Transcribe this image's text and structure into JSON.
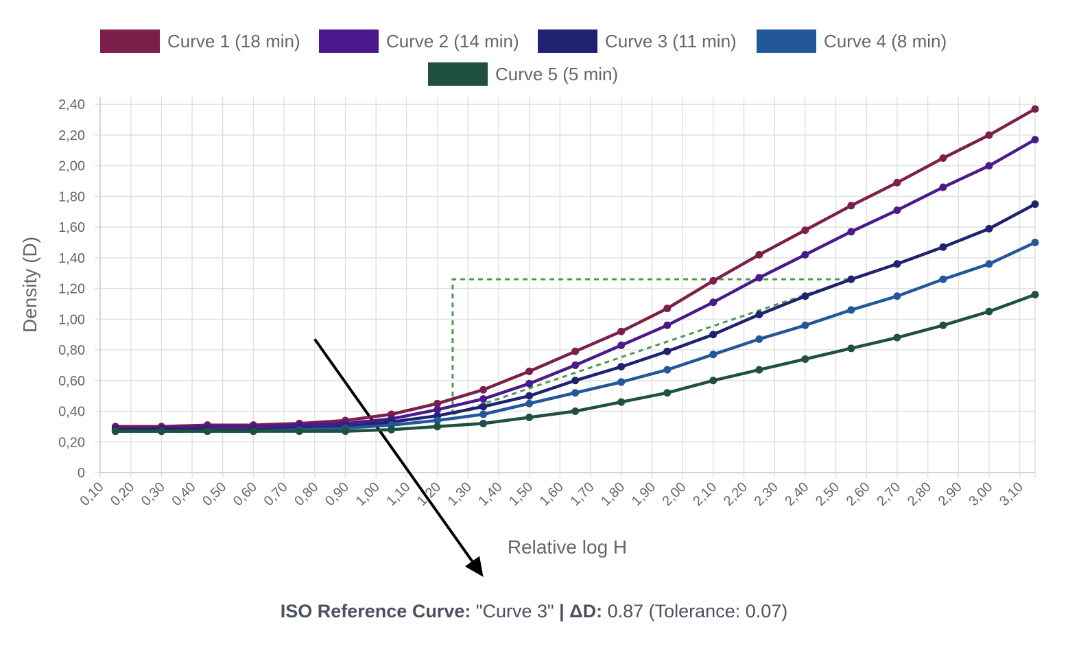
{
  "chart_data": {
    "type": "line",
    "xlabel": "Relative log H",
    "ylabel": "Density (D)",
    "x_ticks": [
      "0,10",
      "0,20",
      "0,30",
      "0,40",
      "0,50",
      "0,60",
      "0,70",
      "0,80",
      "0,90",
      "1,00",
      "1,10",
      "1,20",
      "1,30",
      "1,40",
      "1,50",
      "1,60",
      "1,70",
      "1,80",
      "1,90",
      "2,00",
      "2,10",
      "2,20",
      "2,30",
      "2,40",
      "2,50",
      "2,60",
      "2,70",
      "2,80",
      "2,90",
      "3,00",
      "3,10"
    ],
    "y_ticks": [
      "0",
      "0,20",
      "0,40",
      "0,60",
      "0,80",
      "1,00",
      "1,20",
      "1,40",
      "1,60",
      "1,80",
      "2,00",
      "2,20",
      "2,40"
    ],
    "xlim": [
      0.1,
      3.15
    ],
    "ylim": [
      0,
      2.45
    ],
    "grid": true,
    "legend_position": "top",
    "x": [
      0.15,
      0.3,
      0.45,
      0.6,
      0.75,
      0.9,
      1.05,
      1.2,
      1.35,
      1.5,
      1.65,
      1.8,
      1.95,
      2.1,
      2.25,
      2.4,
      2.55,
      2.7,
      2.85,
      3.0,
      3.15
    ],
    "series": [
      {
        "name": "Curve 1 (18 min)",
        "color": "#7b1f4b",
        "values": [
          0.3,
          0.3,
          0.31,
          0.31,
          0.32,
          0.34,
          0.38,
          0.45,
          0.54,
          0.66,
          0.79,
          0.92,
          1.07,
          1.25,
          1.42,
          1.58,
          1.74,
          1.89,
          2.05,
          2.2,
          2.37
        ]
      },
      {
        "name": "Curve 2 (14 min)",
        "color": "#4a1a8c",
        "values": [
          0.29,
          0.29,
          0.3,
          0.3,
          0.31,
          0.32,
          0.35,
          0.41,
          0.48,
          0.58,
          0.7,
          0.83,
          0.96,
          1.11,
          1.27,
          1.42,
          1.57,
          1.71,
          1.86,
          2.0,
          2.17
        ]
      },
      {
        "name": "Curve 3 (11 min)",
        "color": "#1e2270",
        "values": [
          0.28,
          0.28,
          0.28,
          0.28,
          0.29,
          0.3,
          0.33,
          0.37,
          0.43,
          0.5,
          0.6,
          0.69,
          0.79,
          0.9,
          1.03,
          1.15,
          1.26,
          1.36,
          1.47,
          1.59,
          1.75
        ]
      },
      {
        "name": "Curve 4 (8 min)",
        "color": "#22579a",
        "values": [
          0.27,
          0.27,
          0.27,
          0.27,
          0.28,
          0.29,
          0.31,
          0.34,
          0.38,
          0.45,
          0.52,
          0.59,
          0.67,
          0.77,
          0.87,
          0.96,
          1.06,
          1.15,
          1.26,
          1.36,
          1.5
        ]
      },
      {
        "name": "Curve 5 (5 min)",
        "color": "#1f5040",
        "values": [
          0.27,
          0.27,
          0.27,
          0.27,
          0.27,
          0.27,
          0.28,
          0.3,
          0.32,
          0.36,
          0.4,
          0.46,
          0.52,
          0.6,
          0.67,
          0.74,
          0.81,
          0.88,
          0.96,
          1.05,
          1.16
        ]
      }
    ],
    "annotations": {
      "reference_box": {
        "x0": 1.25,
        "x1": 2.55,
        "y0": 0.38,
        "y1": 1.26,
        "color": "#4c9a4c"
      },
      "arrow": {
        "from": [
          0.8,
          0.87
        ],
        "to": [
          1.35,
          -0.68
        ],
        "color": "#000000"
      }
    }
  },
  "footer": {
    "label": "ISO Reference Curve:",
    "curve": "\"Curve 3\"",
    "separator": "|",
    "delta_label": "ΔD:",
    "delta_value": "0.87 (Tolerance: 0.07)"
  }
}
